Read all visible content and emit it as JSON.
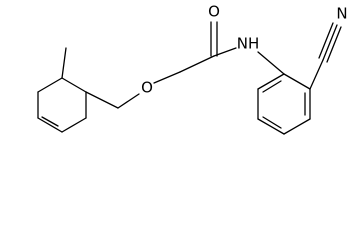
{
  "atoms": {
    "carbonyl_oxygen": "O",
    "amide_nitrogen": "NH",
    "ether_oxygen": "O",
    "nitrile_nitrogen": "N"
  }
}
